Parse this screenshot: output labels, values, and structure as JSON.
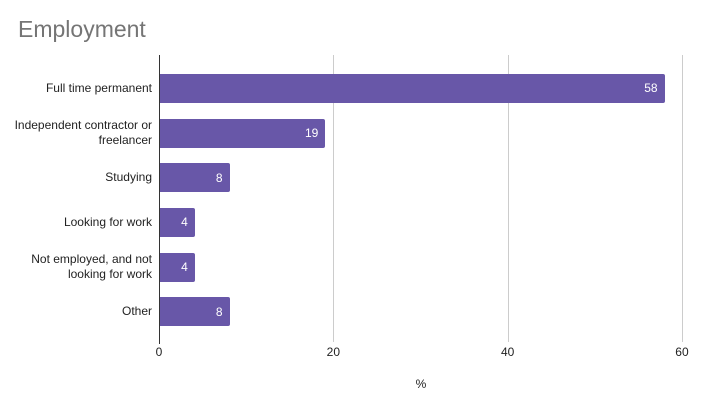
{
  "chart_data": {
    "type": "bar",
    "orientation": "horizontal",
    "title": "Employment",
    "categories": [
      "Full time permanent",
      "Independent contractor or freelancer",
      "Studying",
      "Looking for work",
      "Not employed, and not looking for work",
      "Other"
    ],
    "values": [
      58,
      19,
      8,
      4,
      4,
      8
    ],
    "xlabel": "%",
    "xticks": [
      0,
      20,
      40,
      60
    ],
    "xlim": [
      0,
      60
    ],
    "grid": true,
    "legend": "none",
    "value_labels": "inside-end",
    "colors": {
      "bar": "#6857a8",
      "value_label": "#ffffff",
      "title": "#757575",
      "category_label": "#222222",
      "tick_label": "#222222",
      "gridline": "#cccccc",
      "zero_axis_line": "#333333",
      "background": "#ffffff"
    }
  }
}
